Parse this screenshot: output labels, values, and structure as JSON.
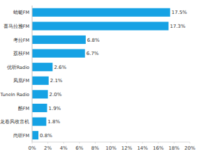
{
  "chart_data": {
    "type": "bar",
    "orientation": "horizontal",
    "categories": [
      "蜻蜓FM",
      "喜马拉雅FM",
      "考拉FM",
      "荔枝FM",
      "优听Radio",
      "凤凰FM",
      "TuneIn Radio",
      "酷FM",
      "龙卷风收音机",
      "尚听FM"
    ],
    "values": [
      17.5,
      17.3,
      6.8,
      6.7,
      2.6,
      2.1,
      2.0,
      1.9,
      1.8,
      0.8
    ],
    "value_labels": [
      "17.5%",
      "17.3%",
      "6.8%",
      "6.7%",
      "2.6%",
      "2.1%",
      "2.0%",
      "1.9%",
      "1.8%",
      "0.8%"
    ],
    "color": "#16a2e4",
    "xlim": [
      0,
      20
    ],
    "xticks": [
      {
        "value": 0,
        "label": "0%"
      },
      {
        "value": 2,
        "label": "2%"
      },
      {
        "value": 4,
        "label": "4%"
      },
      {
        "value": 6,
        "label": "6%"
      },
      {
        "value": 8,
        "label": "8%"
      },
      {
        "value": 10,
        "label": "10%"
      },
      {
        "value": 12,
        "label": "12%"
      },
      {
        "value": 14,
        "label": "14%"
      },
      {
        "value": 16,
        "label": "16%"
      },
      {
        "value": 18,
        "label": "18%"
      },
      {
        "value": 20,
        "label": "20%"
      }
    ],
    "grid": false,
    "data_labels": true
  }
}
